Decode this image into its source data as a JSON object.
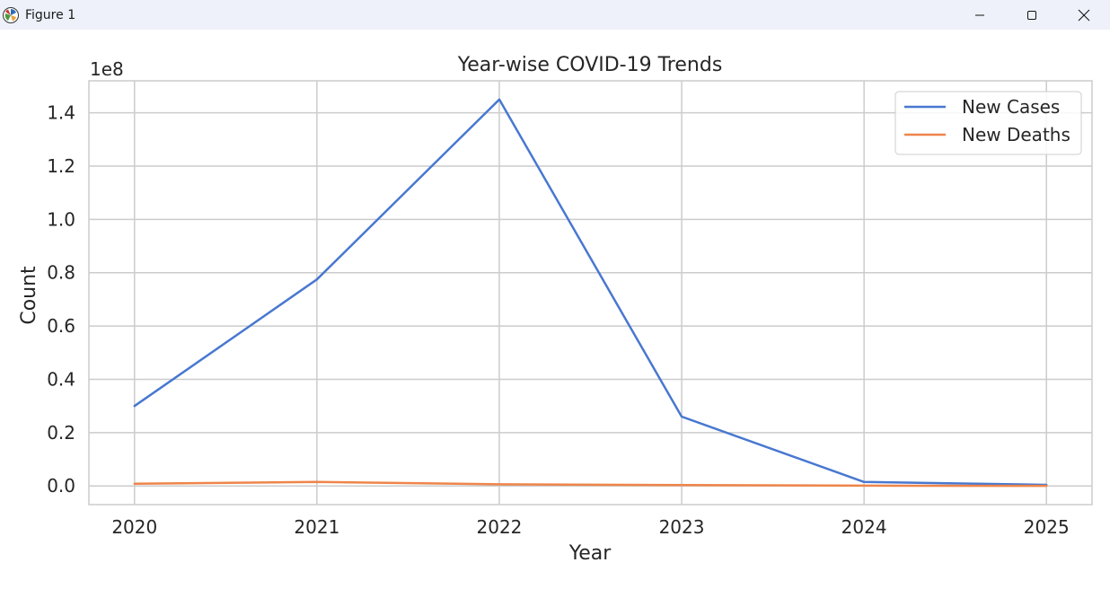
{
  "window": {
    "title": "Figure 1",
    "icons": [
      "matplotlib-logo-icon",
      "minimize-icon",
      "maximize-icon",
      "close-icon"
    ]
  },
  "chart_data": {
    "type": "line",
    "title": "Year-wise COVID-19 Trends",
    "xlabel": "Year",
    "ylabel": "Count",
    "y_offset_label": "1e8",
    "x": [
      2020,
      2021,
      2022,
      2023,
      2024,
      2025
    ],
    "x_tick_labels": [
      "2020",
      "2021",
      "2022",
      "2023",
      "2024",
      "2025"
    ],
    "y_ticks": [
      0.0,
      0.2,
      0.4,
      0.6,
      0.8,
      1.0,
      1.2,
      1.4
    ],
    "y_tick_labels": [
      "0.0",
      "0.2",
      "0.4",
      "0.6",
      "0.8",
      "1.0",
      "1.2",
      "1.4"
    ],
    "ylim": [
      -0.07,
      1.52
    ],
    "xlim": [
      2019.75,
      2025.25
    ],
    "y_unit_multiplier": 100000000,
    "grid": true,
    "legend_position": "top-right",
    "series": [
      {
        "name": "New Cases",
        "color": "#4878d0",
        "values": [
          0.3,
          0.775,
          1.45,
          0.26,
          0.015,
          0.004
        ]
      },
      {
        "name": "New Deaths",
        "color": "#ee854a",
        "values": [
          0.008,
          0.015,
          0.006,
          0.003,
          0.001,
          0.0005
        ]
      }
    ]
  }
}
